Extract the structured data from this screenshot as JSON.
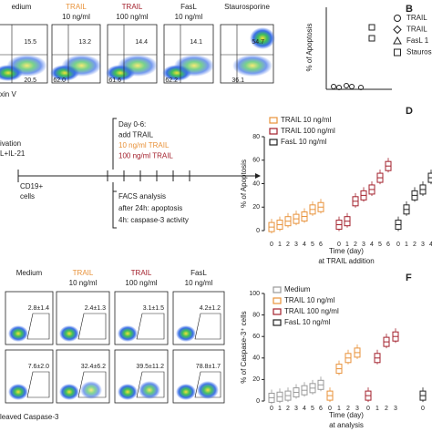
{
  "panel_a": {
    "plots": [
      {
        "title": [
          "edium"
        ],
        "top": "15.5",
        "bottom": "20.5"
      },
      {
        "title": [
          "TRAIL",
          "10 ng/ml"
        ],
        "top": "13.2",
        "bottom": "62.0"
      },
      {
        "title": [
          "TRAIL",
          "100 ng/ml"
        ],
        "top": "14.4",
        "bottom": "61.6"
      },
      {
        "title": [
          "FasL",
          "10 ng/ml"
        ],
        "top": "14.1",
        "bottom": "62.2"
      },
      {
        "title": [
          "Staurosporine"
        ],
        "top": "54.7",
        "bottom": "36.1"
      }
    ],
    "axis_label": "xin V"
  },
  "panel_b": {
    "letter": "B",
    "ylabel": "% of Apoptosis",
    "legend": [
      "TRAIL",
      "TRAIL",
      "FasL 1",
      "Stauros"
    ]
  },
  "panel_c": {
    "start": [
      "ivation",
      "L+IL-21"
    ],
    "cells": [
      "CD19+",
      "cells"
    ],
    "treatment": [
      "Day 0-6:",
      "add TRAIL",
      "10 ng/ml TRAIL",
      "100 ng/ml TRAIL"
    ],
    "analysis": [
      "FACS analysis",
      "after 24h: apoptosis",
      "4h: caspase-3 activity"
    ]
  },
  "panel_e": {
    "plots": [
      {
        "title": [
          "Medium"
        ],
        "top": "2.8±1.4",
        "bottom": "7.6±2.0"
      },
      {
        "title": [
          "TRAIL",
          "10 ng/ml"
        ],
        "top": "2.4±1.3",
        "bottom": "32.4±6.2"
      },
      {
        "title": [
          "TRAIL",
          "100 ng/ml"
        ],
        "top": "3.1±1.5",
        "bottom": "39.5±11.2"
      },
      {
        "title": [
          "FasL",
          "10 ng/ml"
        ],
        "top": "4.2±1.2",
        "bottom": "78.8±1.7"
      }
    ],
    "axis_label": "leaved Caspase-3"
  },
  "chart_data": [
    {
      "type": "box",
      "letter": "D",
      "ylabel": "% of Apoptosis",
      "xlabel": [
        "Time (day)",
        "at TRAIL addition"
      ],
      "ylim": [
        0,
        80
      ],
      "yticks": [
        0,
        20,
        40,
        60,
        80
      ],
      "series": [
        {
          "name": "TRAIL 10 ng/ml",
          "color": "#e8923a",
          "categories": [
            "0",
            "1",
            "2",
            "3",
            "4",
            "5",
            "6"
          ],
          "values": [
            3,
            5,
            8,
            10,
            12,
            18,
            20
          ]
        },
        {
          "name": "TRAIL 100 ng/ml",
          "color": "#a3202c",
          "categories": [
            "0",
            "1",
            "2",
            "3",
            "4",
            "5",
            "6"
          ],
          "values": [
            5,
            8,
            25,
            30,
            35,
            45,
            55
          ]
        },
        {
          "name": "FasL 10 ng/ml",
          "color": "#222222",
          "categories": [
            "0",
            "1",
            "2",
            "3",
            "4"
          ],
          "values": [
            5,
            18,
            30,
            35,
            45
          ]
        }
      ]
    },
    {
      "type": "box",
      "letter": "F",
      "ylabel": "% of Caspase-3⁺ cells",
      "xlabel": [
        "Time (day)",
        "at analysis"
      ],
      "ylim": [
        0,
        100
      ],
      "yticks": [
        0,
        20,
        40,
        60,
        80,
        100
      ],
      "series": [
        {
          "name": "Medium",
          "color": "#999999",
          "categories": [
            "0",
            "1",
            "2",
            "3",
            "4",
            "5",
            "6"
          ],
          "values": [
            3,
            4,
            5,
            8,
            10,
            12,
            15
          ]
        },
        {
          "name": "TRAIL 10 ng/ml",
          "color": "#e8923a",
          "categories": [
            "0",
            "1",
            "2",
            "3"
          ],
          "values": [
            5,
            30,
            40,
            45
          ]
        },
        {
          "name": "TRAIL 100 ng/ml",
          "color": "#a3202c",
          "categories": [
            "0",
            "1",
            "2",
            "3"
          ],
          "values": [
            5,
            40,
            55,
            60
          ]
        },
        {
          "name": "FasL 10 ng/ml",
          "color": "#222222",
          "categories": [
            "0"
          ],
          "values": [
            5
          ]
        }
      ]
    }
  ]
}
